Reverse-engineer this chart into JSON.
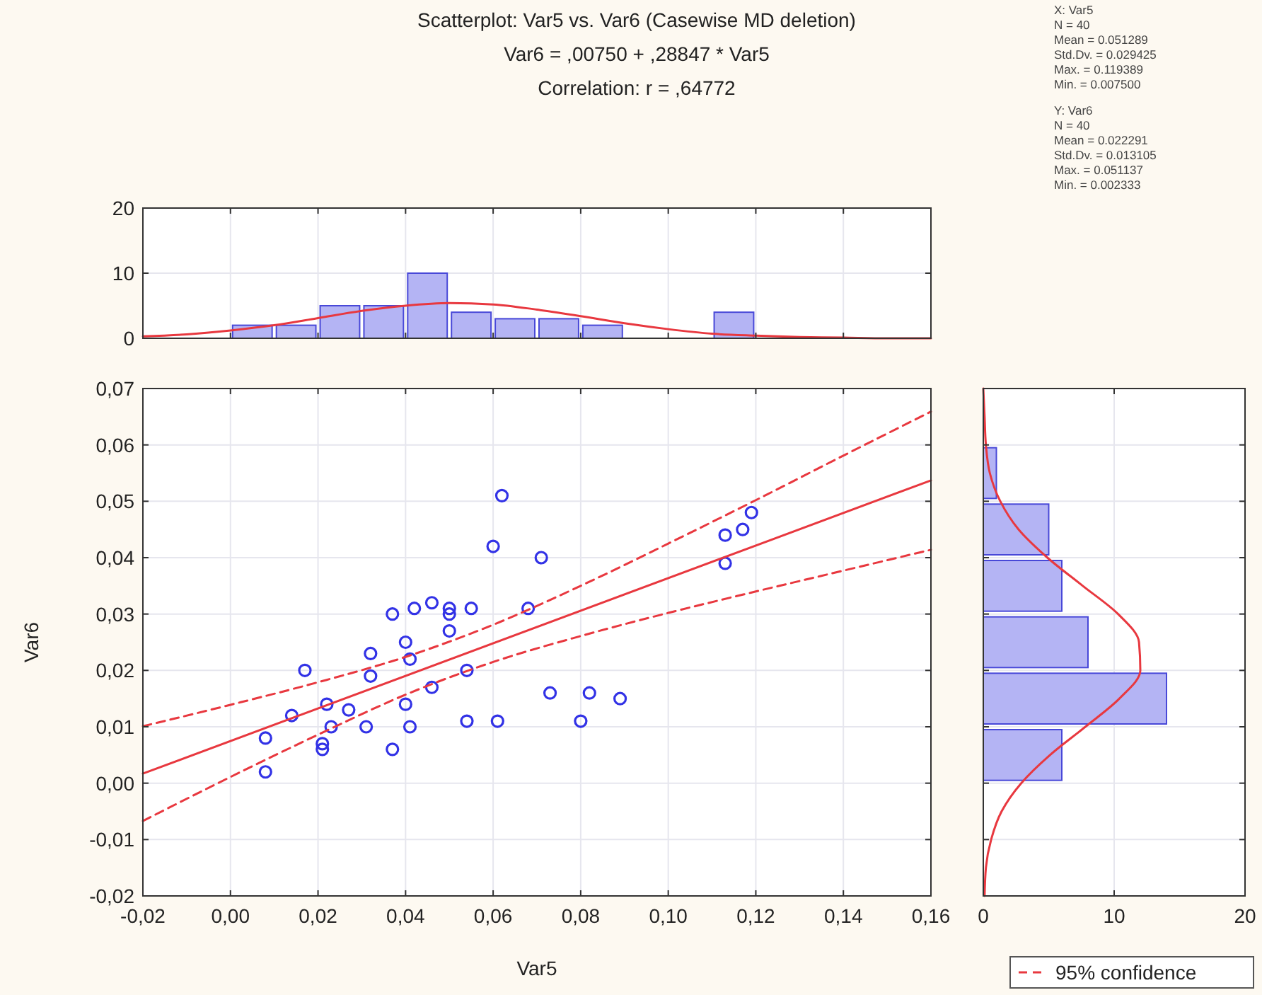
{
  "chart_data": [
    {
      "type": "histogram",
      "title": "Scatterplot: Var5    vs. Var6    (Casewise MD deletion)",
      "subtitle": "Var6    = ,00750 + ,28847 * Var5",
      "annotations": [
        "Correlation: r = ,64772",
        "X: Var5",
        "N = 40",
        "Mean = 0.051289",
        "Std.Dv. = 0.029425",
        "Max. = 0.119389",
        "Min. = 0.007500",
        "Y: Var6",
        "N = 40",
        "Mean = 0.022291",
        "Std.Dv. = 0.013105",
        "Max. = 0.051137",
        "Min. = 0.002333"
      ],
      "xlim": [
        -0.02,
        0.16
      ],
      "xticks": [
        {
          "value": -0.02,
          "label": null
        },
        {
          "value": 0,
          "label": null
        },
        {
          "value": 0.02,
          "label": null
        },
        {
          "value": 0.04,
          "label": null
        },
        {
          "value": 0.06,
          "label": null
        },
        {
          "value": 0.08,
          "label": null
        },
        {
          "value": 0.1,
          "label": null
        },
        {
          "value": 0.12,
          "label": null
        },
        {
          "value": 0.14,
          "label": null
        },
        {
          "value": 0.16,
          "label": null
        }
      ],
      "ylim": [
        0,
        20
      ],
      "yticks": [
        0,
        10,
        20
      ],
      "tick_labels": "y",
      "grid": true,
      "series": [
        {
          "color": "#b4b4f4",
          "bins": [
            0,
            0.01,
            0.02,
            0.03,
            0.04,
            0.05,
            0.06,
            0.07,
            0.08,
            0.09,
            0.1,
            0.11,
            0.12
          ],
          "values": [
            2,
            2,
            5,
            5,
            10,
            4,
            3,
            3,
            2,
            0,
            0,
            4
          ]
        },
        {
          "type": "line",
          "color": "#e8383f",
          "x": [
            -0.02,
            -0.01,
            0,
            0.01,
            0.02,
            0.03,
            0.04,
            0.05,
            0.06,
            0.07,
            0.08,
            0.09,
            0.1,
            0.11,
            0.12,
            0.13,
            0.14,
            0.15,
            0.16
          ],
          "values": [
            0.3,
            0.6,
            1.2,
            2.0,
            3.1,
            4.2,
            5.0,
            5.4,
            5.2,
            4.4,
            3.4,
            2.3,
            1.4,
            0.7,
            0.4,
            0.2,
            0.1,
            0.0,
            0.0
          ]
        }
      ]
    },
    {
      "type": "scatter",
      "xlabel": "Var5",
      "ylabel": "Var6",
      "xlim": [
        -0.02,
        0.16
      ],
      "xticks": [
        {
          "value": -0.02,
          "label": "-0,02"
        },
        {
          "value": 0,
          "label": "0,00"
        },
        {
          "value": 0.02,
          "label": "0,02"
        },
        {
          "value": 0.04,
          "label": "0,04"
        },
        {
          "value": 0.06,
          "label": "0,06"
        },
        {
          "value": 0.08,
          "label": "0,08"
        },
        {
          "value": 0.1,
          "label": "0,10"
        },
        {
          "value": 0.12,
          "label": "0,12"
        },
        {
          "value": 0.14,
          "label": "0,14"
        },
        {
          "value": 0.16,
          "label": "0,16"
        }
      ],
      "ylim": [
        -0.02,
        0.07
      ],
      "yticks": [
        {
          "value": -0.02,
          "label": "-0,02"
        },
        {
          "value": -0.01,
          "label": "-0,01"
        },
        {
          "value": 0,
          "label": "0,00"
        },
        {
          "value": 0.01,
          "label": "0,01"
        },
        {
          "value": 0.02,
          "label": "0,02"
        },
        {
          "value": 0.03,
          "label": "0,03"
        },
        {
          "value": 0.04,
          "label": "0,04"
        },
        {
          "value": 0.05,
          "label": "0,05"
        },
        {
          "value": 0.06,
          "label": "0,06"
        },
        {
          "value": 0.07,
          "label": "0,07"
        }
      ],
      "grid": true,
      "legend": "bottom right",
      "series": [
        {
          "marker": "circle",
          "color": "#3232e6",
          "x": [
            0.062,
            0.06,
            0.071,
            0.113,
            0.117,
            0.119,
            0.113,
            0.046,
            0.042,
            0.05,
            0.055,
            0.037,
            0.05,
            0.05,
            0.068,
            0.04,
            0.032,
            0.041,
            0.032,
            0.017,
            0.054,
            0.046,
            0.073,
            0.082,
            0.089,
            0.014,
            0.022,
            0.027,
            0.04,
            0.023,
            0.031,
            0.041,
            0.054,
            0.061,
            0.08,
            0.008,
            0.021,
            0.021,
            0.037,
            0.008
          ],
          "values": [
            0.051,
            0.042,
            0.04,
            0.044,
            0.045,
            0.048,
            0.039,
            0.032,
            0.031,
            0.031,
            0.031,
            0.03,
            0.03,
            0.027,
            0.031,
            0.025,
            0.023,
            0.022,
            0.019,
            0.02,
            0.02,
            0.017,
            0.016,
            0.016,
            0.015,
            0.012,
            0.014,
            0.013,
            0.014,
            0.01,
            0.01,
            0.01,
            0.011,
            0.011,
            0.011,
            0.008,
            0.007,
            0.006,
            0.006,
            0.002
          ]
        },
        {
          "type": "line",
          "color": "#e8383f",
          "line_style": "solid",
          "x": [
            -0.02,
            0.16
          ],
          "values": [
            0.0017,
            0.0537
          ]
        },
        {
          "type": "line",
          "name": "95% confidence",
          "color": "#e8383f",
          "line_style": "dashed",
          "x": [
            -0.02,
            0,
            0.02,
            0.04,
            0.06,
            0.08,
            0.1,
            0.12,
            0.14,
            0.16
          ],
          "values": [
            0.0101,
            0.0139,
            0.0179,
            0.0224,
            0.0281,
            0.035,
            0.0425,
            0.0502,
            0.0581,
            0.0659
          ]
        },
        {
          "type": "line",
          "color": "#e8383f",
          "line_style": "dashed",
          "x": [
            -0.02,
            0,
            0.02,
            0.04,
            0.06,
            0.08,
            0.1,
            0.12,
            0.14,
            0.16
          ],
          "values": [
            -0.0067,
            0.0011,
            0.0086,
            0.0157,
            0.0215,
            0.0261,
            0.0302,
            0.034,
            0.0377,
            0.0414
          ]
        }
      ]
    },
    {
      "type": "histogram",
      "orientation": "horizontal",
      "xlim": [
        0,
        20
      ],
      "xticks": [
        0,
        10,
        20
      ],
      "ylim": [
        -0.02,
        0.07
      ],
      "yticks": [
        {
          "value": -0.02,
          "label": null
        },
        {
          "value": -0.01,
          "label": null
        },
        {
          "value": 0,
          "label": null
        },
        {
          "value": 0.01,
          "label": null
        },
        {
          "value": 0.02,
          "label": null
        },
        {
          "value": 0.03,
          "label": null
        },
        {
          "value": 0.04,
          "label": null
        },
        {
          "value": 0.05,
          "label": null
        },
        {
          "value": 0.06,
          "label": null
        },
        {
          "value": 0.07,
          "label": null
        }
      ],
      "tick_labels": "x",
      "grid": true,
      "series": [
        {
          "color": "#b4b4f4",
          "bins": [
            0,
            0.01,
            0.02,
            0.03,
            0.04,
            0.05,
            0.06
          ],
          "values": [
            6,
            14,
            8,
            6,
            5,
            1
          ]
        },
        {
          "type": "line",
          "color": "#e8383f",
          "x": [
            -0.02,
            -0.015,
            -0.01,
            -0.005,
            0,
            0.005,
            0.01,
            0.015,
            0.02,
            0.025,
            0.03,
            0.035,
            0.04,
            0.045,
            0.05,
            0.055,
            0.06,
            0.065,
            0.07
          ],
          "values": [
            0.1,
            0.2,
            0.6,
            1.4,
            2.9,
            5.1,
            7.8,
            10.4,
            12.0,
            11.9,
            10.3,
            7.6,
            4.9,
            2.7,
            1.3,
            0.5,
            0.2,
            0.1,
            0.0
          ]
        }
      ]
    }
  ]
}
